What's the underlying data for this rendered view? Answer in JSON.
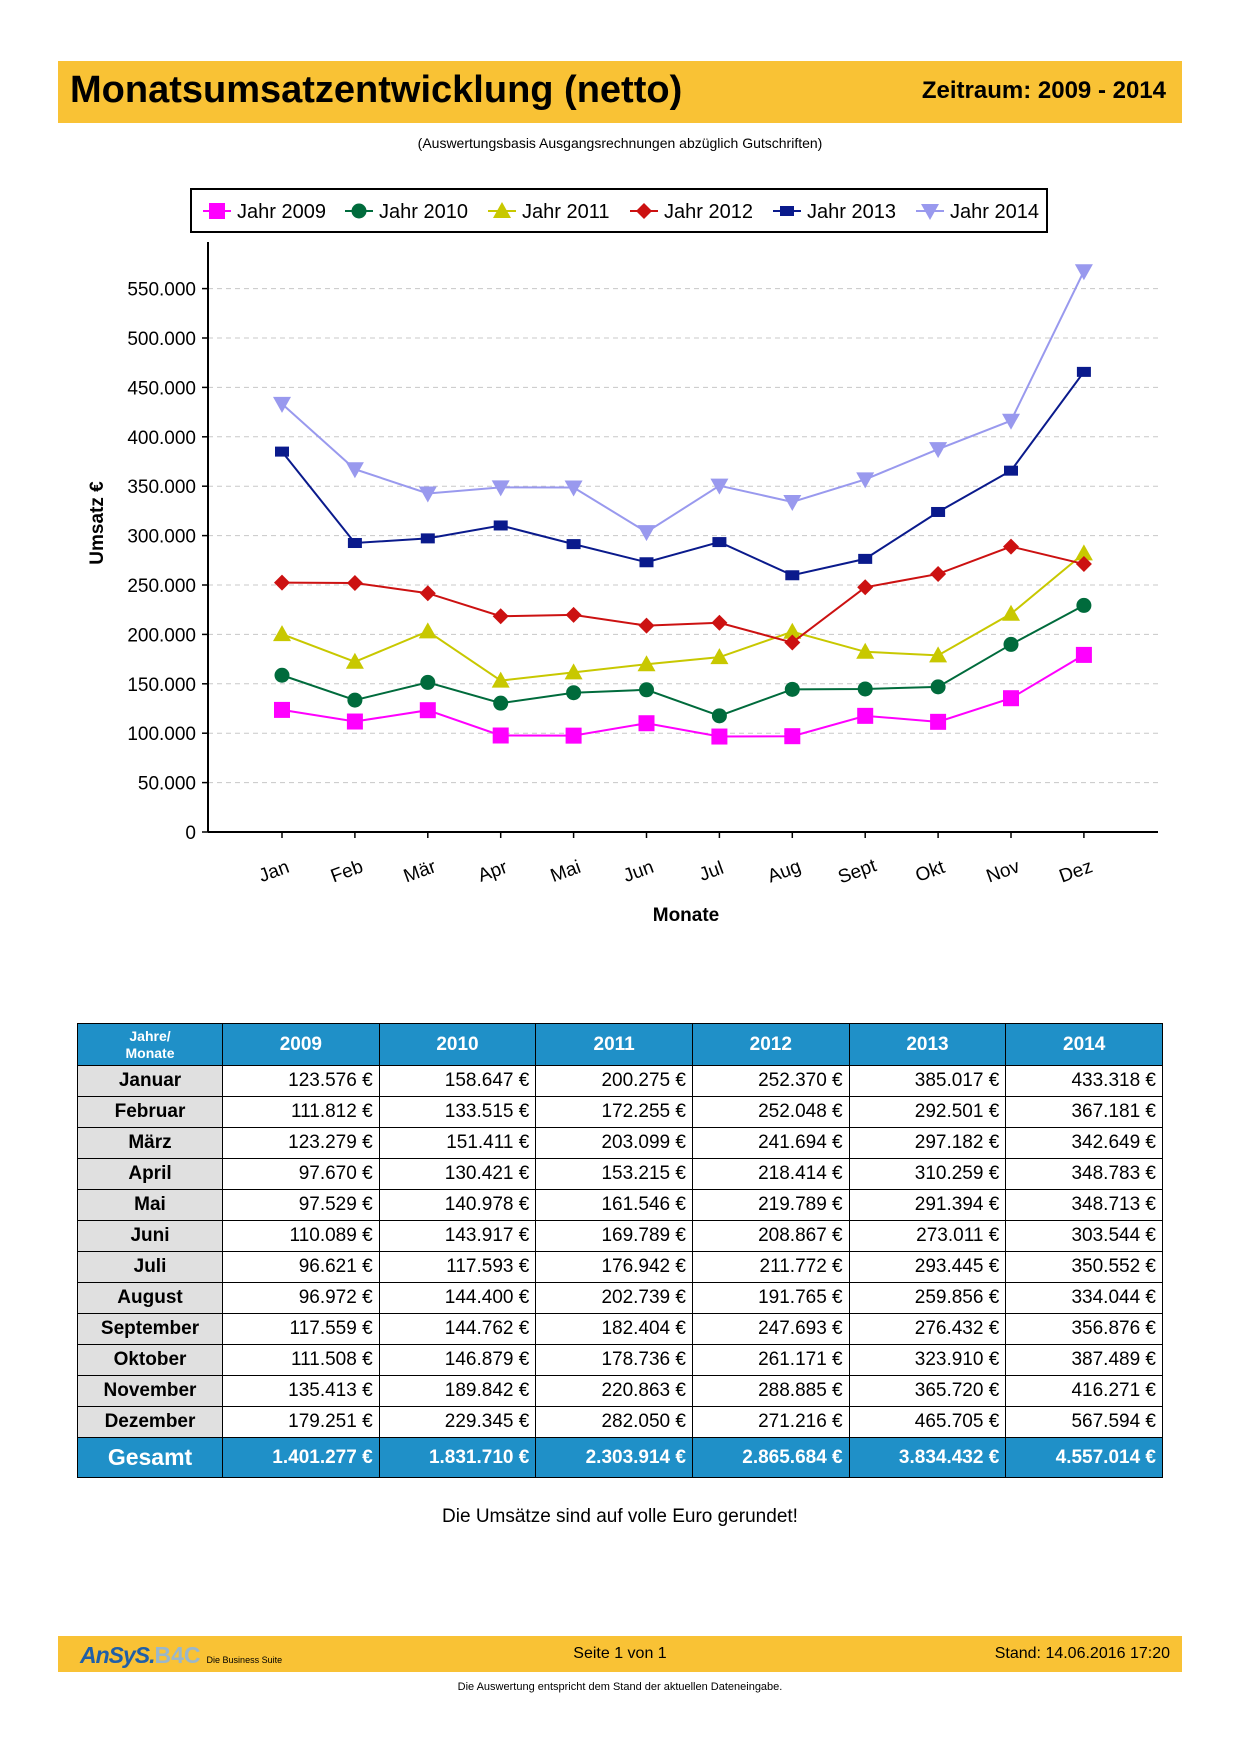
{
  "header": {
    "title": "Monatsumsatzentwicklung (netto)",
    "period": "Zeitraum: 2009 - 2014"
  },
  "subtitle": "(Auswertungsbasis Ausgangsrechnungen abzüglich Gutschriften)",
  "chart_data": {
    "type": "line",
    "title": "",
    "xlabel": "Monate",
    "ylabel": "Umsatz €",
    "ylim": [
      0,
      600000
    ],
    "yticks": [
      0,
      50000,
      100000,
      150000,
      200000,
      250000,
      300000,
      350000,
      400000,
      450000,
      500000,
      550000
    ],
    "ytick_labels": [
      "0",
      "50.000",
      "100.000",
      "150.000",
      "200.000",
      "250.000",
      "300.000",
      "350.000",
      "400.000",
      "450.000",
      "500.000",
      "550.000"
    ],
    "categories": [
      "Jan",
      "Feb",
      "Mär",
      "Apr",
      "Mai",
      "Jun",
      "Jul",
      "Aug",
      "Sept",
      "Okt",
      "Nov",
      "Dez"
    ],
    "grid": true,
    "legend_position": "top",
    "series": [
      {
        "name": "Jahr 2009",
        "color": "#ff00ff",
        "marker": "square",
        "values": [
          123576,
          111812,
          123279,
          97670,
          97529,
          110089,
          96621,
          96972,
          117559,
          111508,
          135413,
          179251
        ]
      },
      {
        "name": "Jahr 2010",
        "color": "#006b3c",
        "marker": "circle",
        "values": [
          158647,
          133515,
          151411,
          130421,
          140978,
          143917,
          117593,
          144400,
          144762,
          146879,
          189842,
          229345
        ]
      },
      {
        "name": "Jahr 2011",
        "color": "#c8c800",
        "marker": "triangle-up",
        "values": [
          200275,
          172255,
          203099,
          153215,
          161546,
          169789,
          176942,
          202739,
          182404,
          178736,
          220863,
          282050
        ]
      },
      {
        "name": "Jahr 2012",
        "color": "#cc1111",
        "marker": "diamond",
        "values": [
          252370,
          252048,
          241694,
          218414,
          219789,
          208867,
          211772,
          191765,
          247693,
          261171,
          288885,
          271216
        ]
      },
      {
        "name": "Jahr 2013",
        "color": "#0a1a8c",
        "marker": "rect",
        "values": [
          385017,
          292501,
          297182,
          310259,
          291394,
          273011,
          293445,
          259856,
          276432,
          323910,
          365720,
          465705
        ]
      },
      {
        "name": "Jahr 2014",
        "color": "#9999ee",
        "marker": "triangle-down",
        "values": [
          433318,
          367181,
          342649,
          348783,
          348713,
          303544,
          350552,
          334044,
          356876,
          387489,
          416271,
          567594
        ]
      }
    ]
  },
  "table": {
    "corner_line1": "Jahre/",
    "corner_line2": "Monate",
    "years": [
      "2009",
      "2010",
      "2011",
      "2012",
      "2013",
      "2014"
    ],
    "rows": [
      {
        "month": "Januar",
        "values": [
          "123.576 €",
          "158.647 €",
          "200.275 €",
          "252.370 €",
          "385.017 €",
          "433.318 €"
        ]
      },
      {
        "month": "Februar",
        "values": [
          "111.812 €",
          "133.515 €",
          "172.255 €",
          "252.048 €",
          "292.501 €",
          "367.181 €"
        ]
      },
      {
        "month": "März",
        "values": [
          "123.279 €",
          "151.411 €",
          "203.099 €",
          "241.694 €",
          "297.182 €",
          "342.649 €"
        ]
      },
      {
        "month": "April",
        "values": [
          "97.670 €",
          "130.421 €",
          "153.215 €",
          "218.414 €",
          "310.259 €",
          "348.783 €"
        ]
      },
      {
        "month": "Mai",
        "values": [
          "97.529 €",
          "140.978 €",
          "161.546 €",
          "219.789 €",
          "291.394 €",
          "348.713 €"
        ]
      },
      {
        "month": "Juni",
        "values": [
          "110.089 €",
          "143.917 €",
          "169.789 €",
          "208.867 €",
          "273.011 €",
          "303.544 €"
        ]
      },
      {
        "month": "Juli",
        "values": [
          "96.621 €",
          "117.593 €",
          "176.942 €",
          "211.772 €",
          "293.445 €",
          "350.552 €"
        ]
      },
      {
        "month": "August",
        "values": [
          "96.972 €",
          "144.400 €",
          "202.739 €",
          "191.765 €",
          "259.856 €",
          "334.044 €"
        ]
      },
      {
        "month": "September",
        "values": [
          "117.559 €",
          "144.762 €",
          "182.404 €",
          "247.693 €",
          "276.432 €",
          "356.876 €"
        ]
      },
      {
        "month": "Oktober",
        "values": [
          "111.508 €",
          "146.879 €",
          "178.736 €",
          "261.171 €",
          "323.910 €",
          "387.489 €"
        ]
      },
      {
        "month": "November",
        "values": [
          "135.413 €",
          "189.842 €",
          "220.863 €",
          "288.885 €",
          "365.720 €",
          "416.271 €"
        ]
      },
      {
        "month": "Dezember",
        "values": [
          "179.251 €",
          "229.345 €",
          "282.050 €",
          "271.216 €",
          "465.705 €",
          "567.594 €"
        ]
      }
    ],
    "total_label": "Gesamt",
    "totals": [
      "1.401.277 €",
      "1.831.710 €",
      "2.303.914 €",
      "2.865.684 €",
      "3.834.432 €",
      "4.557.014 €"
    ]
  },
  "note": "Die Umsätze sind auf volle Euro gerundet!",
  "footer": {
    "logo_main": "AnSyS.",
    "logo_b4c": "B4C",
    "logo_tagline": "Die Business Suite",
    "page_info": "Seite 1 von  1",
    "stand": "Stand: 14.06.2016  17:20",
    "disclaimer": "Die Auswertung entspricht dem Stand der aktuellen Dateneingabe."
  },
  "colors": {
    "header_bg": "#f9c235",
    "table_header_bg": "#1f90c8",
    "month_cell_bg": "#e0e0e0"
  }
}
